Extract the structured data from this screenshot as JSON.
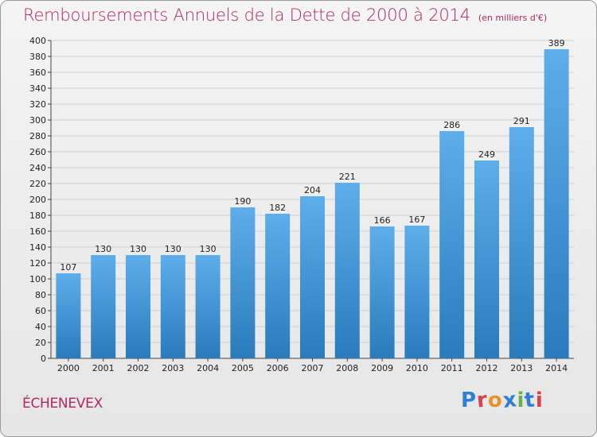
{
  "title": "Remboursements Annuels de la Dette de 2000 à 2014",
  "unit_note": "(en milliers d'€)",
  "commune": "ÉCHENEVEX",
  "logo": {
    "text": "Proxiti",
    "letter_colors": [
      "#2f7fd0",
      "#d8424a",
      "#e8922a",
      "#2f7fd0",
      "#6ab04c",
      "#2f7fd0",
      "#d8424a"
    ]
  },
  "colors": {
    "accent": "#b0285f",
    "bar_top": "#5daeea",
    "bar_bottom": "#2a7bbb"
  },
  "chart_data": {
    "type": "bar",
    "title": "Remboursements Annuels de la Dette de 2000 à 2014",
    "xlabel": "",
    "ylabel": "",
    "categories": [
      "2000",
      "2001",
      "2002",
      "2003",
      "2004",
      "2005",
      "2006",
      "2007",
      "2008",
      "2009",
      "2010",
      "2011",
      "2012",
      "2013",
      "2014"
    ],
    "values": [
      107,
      130,
      130,
      130,
      130,
      190,
      182,
      204,
      221,
      166,
      167,
      286,
      249,
      291,
      389
    ],
    "ylim": [
      0,
      400
    ],
    "ytick_step": 20,
    "grid": true,
    "data_labels": true
  }
}
